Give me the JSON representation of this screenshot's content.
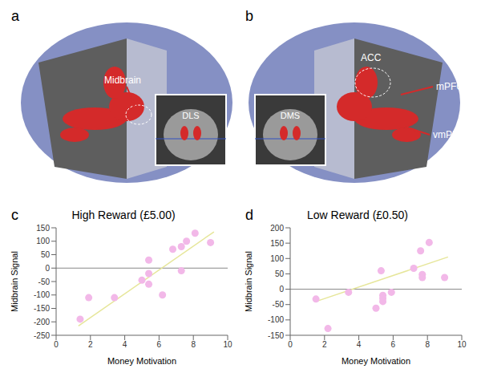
{
  "images": [
    {
      "panel_label": "a",
      "labels": [
        "Midbrain"
      ],
      "inset_label": "DLS"
    },
    {
      "panel_label": "b",
      "labels": [
        "ACC",
        "mPFC",
        "vmPFC"
      ],
      "inset_label": "DMS"
    }
  ],
  "chart_data": [
    {
      "type": "scatter",
      "panel_label": "c",
      "title": "High Reward (£5.00)",
      "x_label": "Money Motivation",
      "y_label": "Midbrain Signal",
      "x": [
        1.4,
        1.9,
        3.4,
        5.0,
        5.4,
        5.4,
        5.4,
        6.2,
        6.8,
        7.3,
        7.3,
        7.6,
        8.1,
        9.0
      ],
      "values": [
        -190,
        -110,
        -110,
        -45,
        30,
        -20,
        -60,
        -100,
        70,
        80,
        -10,
        100,
        130,
        95
      ],
      "color": "#f2b8e8",
      "marker": "circle",
      "fit_line": {
        "x": [
          1.3,
          9.2
        ],
        "y": [
          -215,
          135
        ],
        "color": "#e6e69a"
      },
      "xlim": [
        0,
        10
      ],
      "xticks": [
        0,
        2,
        4,
        6,
        8,
        10
      ],
      "ylim": [
        -250,
        150
      ],
      "yticks": [
        -250,
        -200,
        -150,
        -100,
        -50,
        0,
        50,
        100,
        150
      ],
      "grid": false
    },
    {
      "type": "scatter",
      "panel_label": "d",
      "title": "Low Reward (£0.50)",
      "x_label": "Money Motivation",
      "y_label": "Midbrain Signal",
      "x": [
        1.5,
        2.2,
        3.4,
        5.0,
        5.3,
        5.4,
        5.4,
        5.4,
        5.9,
        7.2,
        7.6,
        7.7,
        7.7,
        8.1,
        9.0
      ],
      "values": [
        -32,
        -128,
        -10,
        -62,
        60,
        -20,
        -30,
        -40,
        -10,
        68,
        125,
        48,
        38,
        152,
        38
      ],
      "color": "#f2b8e8",
      "marker": "circle",
      "fit_line": {
        "x": [
          1.5,
          9.2
        ],
        "y": [
          -40,
          105
        ],
        "color": "#e6e69a"
      },
      "xlim": [
        0,
        10
      ],
      "xticks": [
        0,
        2,
        4,
        6,
        8,
        10
      ],
      "ylim": [
        -150,
        200
      ],
      "yticks": [
        -150,
        -100,
        -50,
        0,
        50,
        100,
        150,
        200
      ],
      "grid": false
    }
  ]
}
